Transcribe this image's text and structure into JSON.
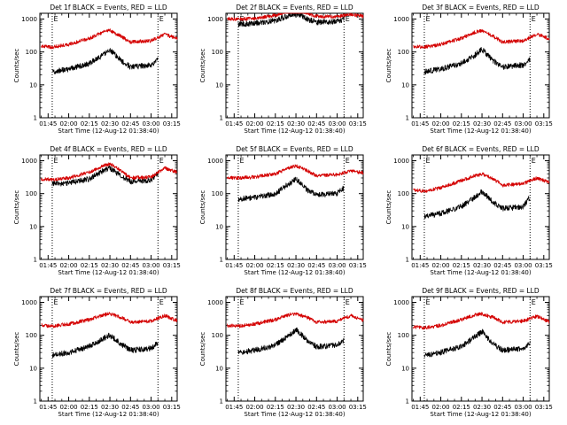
{
  "colors": {
    "events": "#000000",
    "lld": "#d40000",
    "background": "#ffffff",
    "axes": "#000000"
  },
  "chart_data": [
    {
      "type": "line",
      "title": "Det 1f BLACK = Events, RED = LLD",
      "xlabel": "Start Time (12-Aug-12 01:38:40)",
      "ylabel": "Counts/sec",
      "x_ticks": [
        "01:45",
        "02:00",
        "02:15",
        "02:30",
        "02:45",
        "03:00",
        "03:15"
      ],
      "y_ticks": [
        "1",
        "10",
        "100",
        "1000"
      ],
      "yscale": "log",
      "ylim": [
        1,
        1500
      ],
      "xlim": [
        "01:39",
        "03:19"
      ],
      "markers": [
        "E",
        "E"
      ],
      "marker_times": [
        "01:48",
        "03:05"
      ],
      "grid": false,
      "series": [
        {
          "color": "#000000",
          "x": [
            "01:48",
            "02:00",
            "02:15",
            "02:25",
            "02:30",
            "02:38",
            "02:45",
            "03:00",
            "03:05"
          ],
          "y": [
            25,
            30,
            45,
            80,
            120,
            55,
            35,
            40,
            60
          ]
        },
        {
          "color": "#d40000",
          "x": [
            "01:40",
            "01:48",
            "02:00",
            "02:15",
            "02:25",
            "02:30",
            "02:38",
            "02:45",
            "03:00",
            "03:10",
            "03:19"
          ],
          "y": [
            150,
            140,
            170,
            260,
            400,
            450,
            300,
            200,
            220,
            350,
            250
          ]
        }
      ]
    },
    {
      "type": "line",
      "title": "Det 2f BLACK = Events, RED = LLD",
      "xlabel": "Start Time (12-Aug-12 01:38:40)",
      "ylabel": "Counts/sec",
      "x_ticks": [
        "01:45",
        "02:00",
        "02:15",
        "02:30",
        "02:45",
        "03:00",
        "03:15"
      ],
      "y_ticks": [
        "1",
        "10",
        "100",
        "1000"
      ],
      "yscale": "log",
      "ylim": [
        1,
        1500
      ],
      "xlim": [
        "01:39",
        "03:19"
      ],
      "markers": [
        "E",
        "E"
      ],
      "marker_times": [
        "01:48",
        "03:05"
      ],
      "grid": false,
      "series": [
        {
          "color": "#000000",
          "x": [
            "01:48",
            "02:00",
            "02:15",
            "02:25",
            "02:30",
            "02:38",
            "02:45",
            "03:00",
            "03:05"
          ],
          "y": [
            700,
            750,
            900,
            1300,
            1500,
            1000,
            800,
            850,
            1000
          ]
        },
        {
          "color": "#d40000",
          "x": [
            "01:40",
            "01:48",
            "02:00",
            "02:15",
            "02:25",
            "02:30",
            "02:38",
            "02:45",
            "03:00",
            "03:10",
            "03:19"
          ],
          "y": [
            1000,
            1000,
            1050,
            1300,
            1800,
            2000,
            1500,
            1200,
            1200,
            1400,
            1200
          ]
        }
      ]
    },
    {
      "type": "line",
      "title": "Det 3f BLACK = Events, RED = LLD",
      "xlabel": "Start Time (12-Aug-12 01:38:40)",
      "ylabel": "Counts/sec",
      "x_ticks": [
        "01:45",
        "02:00",
        "02:15",
        "02:30",
        "02:45",
        "03:00",
        "03:15"
      ],
      "y_ticks": [
        "1",
        "10",
        "100",
        "1000"
      ],
      "yscale": "log",
      "ylim": [
        1,
        1500
      ],
      "xlim": [
        "01:39",
        "03:19"
      ],
      "markers": [
        "E",
        "E"
      ],
      "marker_times": [
        "01:48",
        "03:05"
      ],
      "grid": false,
      "series": [
        {
          "color": "#000000",
          "x": [
            "01:48",
            "02:00",
            "02:15",
            "02:25",
            "02:30",
            "02:38",
            "02:45",
            "03:00",
            "03:05"
          ],
          "y": [
            25,
            30,
            45,
            80,
            120,
            55,
            35,
            40,
            60
          ]
        },
        {
          "color": "#d40000",
          "x": [
            "01:40",
            "01:48",
            "02:00",
            "02:15",
            "02:25",
            "02:30",
            "02:38",
            "02:45",
            "03:00",
            "03:10",
            "03:19"
          ],
          "y": [
            150,
            140,
            170,
            260,
            400,
            450,
            300,
            200,
            220,
            350,
            250
          ]
        }
      ]
    },
    {
      "type": "line",
      "title": "Det 4f BLACK = Events, RED = LLD",
      "xlabel": "Start Time (12-Aug-12 01:38:40)",
      "ylabel": "Counts/sec",
      "x_ticks": [
        "01:45",
        "02:00",
        "02:15",
        "02:30",
        "02:45",
        "03:00",
        "03:15"
      ],
      "y_ticks": [
        "1",
        "10",
        "100",
        "1000"
      ],
      "yscale": "log",
      "ylim": [
        1,
        1500
      ],
      "xlim": [
        "01:39",
        "03:19"
      ],
      "markers": [
        "E",
        "E"
      ],
      "marker_times": [
        "01:48",
        "03:05"
      ],
      "grid": false,
      "series": [
        {
          "color": "#000000",
          "x": [
            "01:48",
            "02:00",
            "02:15",
            "02:25",
            "02:30",
            "02:38",
            "02:45",
            "03:00",
            "03:05"
          ],
          "y": [
            200,
            210,
            280,
            500,
            600,
            350,
            230,
            260,
            400
          ]
        },
        {
          "color": "#d40000",
          "x": [
            "01:40",
            "01:48",
            "02:00",
            "02:15",
            "02:25",
            "02:30",
            "02:38",
            "02:45",
            "03:00",
            "03:10",
            "03:19"
          ],
          "y": [
            280,
            270,
            300,
            450,
            700,
            800,
            500,
            300,
            320,
            600,
            450
          ]
        }
      ]
    },
    {
      "type": "line",
      "title": "Det 5f BLACK = Events, RED = LLD",
      "xlabel": "Start Time (12-Aug-12 01:38:40)",
      "ylabel": "Counts/sec",
      "x_ticks": [
        "01:45",
        "02:00",
        "02:15",
        "02:30",
        "02:45",
        "03:00",
        "03:15"
      ],
      "y_ticks": [
        "1",
        "10",
        "100",
        "1000"
      ],
      "yscale": "log",
      "ylim": [
        1,
        1500
      ],
      "xlim": [
        "01:39",
        "03:19"
      ],
      "markers": [
        "E",
        "E"
      ],
      "marker_times": [
        "01:48",
        "03:05"
      ],
      "grid": false,
      "series": [
        {
          "color": "#000000",
          "x": [
            "01:48",
            "02:00",
            "02:15",
            "02:25",
            "02:30",
            "02:38",
            "02:45",
            "03:00",
            "03:05"
          ],
          "y": [
            70,
            75,
            100,
            200,
            280,
            130,
            90,
            100,
            150
          ]
        },
        {
          "color": "#d40000",
          "x": [
            "01:40",
            "01:48",
            "02:00",
            "02:15",
            "02:25",
            "02:30",
            "02:38",
            "02:45",
            "03:00",
            "03:10",
            "03:19"
          ],
          "y": [
            300,
            300,
            320,
            400,
            600,
            700,
            500,
            350,
            380,
            500,
            420
          ]
        }
      ]
    },
    {
      "type": "line",
      "title": "Det 6f BLACK = Events, RED = LLD",
      "xlabel": "Start Time (12-Aug-12 01:38:40)",
      "ylabel": "Counts/sec",
      "x_ticks": [
        "01:45",
        "02:00",
        "02:15",
        "02:30",
        "02:45",
        "03:00",
        "03:15"
      ],
      "y_ticks": [
        "1",
        "10",
        "100",
        "1000"
      ],
      "yscale": "log",
      "ylim": [
        1,
        1500
      ],
      "xlim": [
        "01:39",
        "03:19"
      ],
      "markers": [
        "E",
        "E"
      ],
      "marker_times": [
        "01:48",
        "03:05"
      ],
      "grid": false,
      "series": [
        {
          "color": "#000000",
          "x": [
            "01:48",
            "02:00",
            "02:15",
            "02:25",
            "02:30",
            "02:38",
            "02:45",
            "03:00",
            "03:05"
          ],
          "y": [
            20,
            25,
            40,
            80,
            120,
            55,
            35,
            40,
            80
          ]
        },
        {
          "color": "#d40000",
          "x": [
            "01:40",
            "01:48",
            "02:00",
            "02:15",
            "02:25",
            "02:30",
            "02:38",
            "02:45",
            "03:00",
            "03:10",
            "03:19"
          ],
          "y": [
            130,
            120,
            150,
            250,
            350,
            400,
            280,
            180,
            200,
            300,
            220
          ]
        }
      ]
    },
    {
      "type": "line",
      "title": "Det 7f BLACK = Events, RED = LLD",
      "xlabel": "Start Time (12-Aug-12 01:38:40)",
      "ylabel": "Counts/sec",
      "x_ticks": [
        "01:45",
        "02:00",
        "02:15",
        "02:30",
        "02:45",
        "03:00",
        "03:15"
      ],
      "y_ticks": [
        "1",
        "10",
        "100",
        "1000"
      ],
      "yscale": "log",
      "ylim": [
        1,
        1500
      ],
      "xlim": [
        "01:39",
        "03:19"
      ],
      "markers": [
        "E",
        "E"
      ],
      "marker_times": [
        "01:48",
        "03:05"
      ],
      "grid": false,
      "series": [
        {
          "color": "#000000",
          "x": [
            "01:48",
            "02:00",
            "02:15",
            "02:25",
            "02:30",
            "02:38",
            "02:45",
            "03:00",
            "03:05"
          ],
          "y": [
            25,
            30,
            45,
            80,
            100,
            55,
            35,
            40,
            60
          ]
        },
        {
          "color": "#d40000",
          "x": [
            "01:40",
            "01:48",
            "02:00",
            "02:15",
            "02:25",
            "02:30",
            "02:38",
            "02:45",
            "03:00",
            "03:10",
            "03:19"
          ],
          "y": [
            200,
            190,
            220,
            300,
            420,
            450,
            350,
            250,
            270,
            400,
            280
          ]
        }
      ]
    },
    {
      "type": "line",
      "title": "Det 8f BLACK = Events, RED = LLD",
      "xlabel": "Start Time (12-Aug-12 01:38:40)",
      "ylabel": "Counts/sec",
      "x_ticks": [
        "01:45",
        "02:00",
        "02:15",
        "02:30",
        "02:45",
        "03:00",
        "03:15"
      ],
      "y_ticks": [
        "1",
        "10",
        "100",
        "1000"
      ],
      "yscale": "log",
      "ylim": [
        1,
        1500
      ],
      "xlim": [
        "01:39",
        "03:19"
      ],
      "markers": [
        "E",
        "E"
      ],
      "marker_times": [
        "01:48",
        "03:05"
      ],
      "grid": false,
      "series": [
        {
          "color": "#000000",
          "x": [
            "01:48",
            "02:00",
            "02:15",
            "02:25",
            "02:30",
            "02:38",
            "02:45",
            "03:00",
            "03:05"
          ],
          "y": [
            30,
            35,
            50,
            100,
            150,
            70,
            45,
            50,
            70
          ]
        },
        {
          "color": "#d40000",
          "x": [
            "01:40",
            "01:48",
            "02:00",
            "02:15",
            "02:25",
            "02:30",
            "02:38",
            "02:45",
            "03:00",
            "03:10",
            "03:19"
          ],
          "y": [
            200,
            190,
            220,
            300,
            420,
            450,
            350,
            250,
            270,
            400,
            280
          ]
        }
      ]
    },
    {
      "type": "line",
      "title": "Det 9f BLACK = Events, RED = LLD",
      "xlabel": "Start Time (12-Aug-12 01:38:40)",
      "ylabel": "Counts/sec",
      "x_ticks": [
        "01:45",
        "02:00",
        "02:15",
        "02:30",
        "02:45",
        "03:00",
        "03:15"
      ],
      "y_ticks": [
        "1",
        "10",
        "100",
        "1000"
      ],
      "yscale": "log",
      "ylim": [
        1,
        1500
      ],
      "xlim": [
        "01:39",
        "03:19"
      ],
      "markers": [
        "E",
        "E"
      ],
      "marker_times": [
        "01:48",
        "03:05"
      ],
      "grid": false,
      "series": [
        {
          "color": "#000000",
          "x": [
            "01:48",
            "02:00",
            "02:15",
            "02:25",
            "02:30",
            "02:38",
            "02:45",
            "03:00",
            "03:05"
          ],
          "y": [
            25,
            30,
            45,
            90,
            130,
            55,
            35,
            40,
            60
          ]
        },
        {
          "color": "#d40000",
          "x": [
            "01:40",
            "01:48",
            "02:00",
            "02:15",
            "02:25",
            "02:30",
            "02:38",
            "02:45",
            "03:00",
            "03:10",
            "03:19"
          ],
          "y": [
            180,
            170,
            200,
            300,
            420,
            450,
            350,
            250,
            270,
            380,
            260
          ]
        }
      ]
    }
  ]
}
